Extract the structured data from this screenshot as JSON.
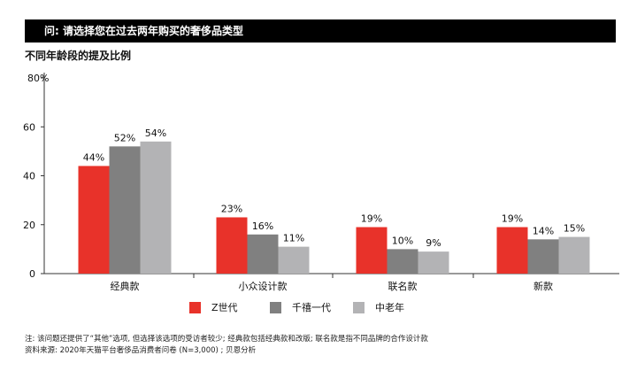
{
  "header": {
    "title": "问: 请选择您在过去两年购买的奢侈品类型"
  },
  "subtitle": "不同年龄段的提及比例",
  "colors": {
    "z_gen": "#e8322a",
    "qianxi": "#808080",
    "older": "#b3b3b5",
    "header_bg": "#000000"
  },
  "chart_data": {
    "type": "bar",
    "title": "不同年龄段的提及比例",
    "xlabel": "",
    "ylabel": "",
    "ylim": [
      0,
      80
    ],
    "yticks": [
      "0",
      "20",
      "40",
      "60",
      "80%"
    ],
    "categories": [
      "经典款",
      "小众设计款",
      "联名款",
      "新款"
    ],
    "series": [
      {
        "name": "Z世代",
        "values": [
          44,
          23,
          19,
          19
        ],
        "labels": [
          "44%",
          "23%",
          "19%",
          "19%"
        ]
      },
      {
        "name": "千禧一代",
        "values": [
          52,
          16,
          10,
          14
        ],
        "labels": [
          "52%",
          "16%",
          "10%",
          "14%"
        ]
      },
      {
        "name": "中老年",
        "values": [
          54,
          11,
          9,
          15
        ],
        "labels": [
          "54%",
          "11%",
          "9%",
          "15%"
        ]
      }
    ],
    "legend": "bottom-center",
    "grid": false
  },
  "footnote": {
    "line1": "注: 该问题还提供了“其他”选项, 但选择该选项的受访者较少; 经典款包括经典款和改版; 联名款是指不同品牌的合作设计款",
    "line2": "资料来源: 2020年天猫平台奢侈品消费者问卷 (N=3,000) ; 贝恩分析"
  }
}
